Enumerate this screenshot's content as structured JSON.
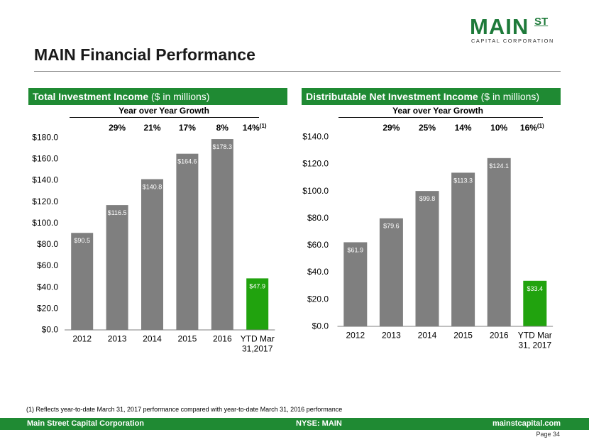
{
  "logo": {
    "main": "MAIN",
    "st": "ST",
    "sub": "CAPITAL CORPORATION"
  },
  "title": "MAIN Financial Performance",
  "left_header": {
    "bold": "Total Investment Income",
    "rest": " ($ in millions)"
  },
  "right_header": {
    "bold": "Distributable Net Investment Income",
    "rest": " ($ in millions)"
  },
  "colors": {
    "gray_bar": "#7f7f7f",
    "green_bar": "#21a30e",
    "brand_green": "#1f8a33"
  },
  "chart_data": [
    {
      "type": "bar",
      "title": "Total Investment Income ($ in millions)",
      "growth_title": "Year over Year Growth",
      "growth": [
        "29%",
        "21%",
        "17%",
        "8%",
        "14%"
      ],
      "growth_last_note": "(1)",
      "categories": [
        "2012",
        "2013",
        "2014",
        "2015",
        "2016",
        "YTD Mar 31,2017"
      ],
      "category_lines": [
        [
          "2012"
        ],
        [
          "2013"
        ],
        [
          "2014"
        ],
        [
          "2015"
        ],
        [
          "2016"
        ],
        [
          "YTD Mar",
          "31,2017"
        ]
      ],
      "values": [
        90.5,
        116.5,
        140.8,
        164.6,
        178.3,
        47.9
      ],
      "value_labels": [
        "$90.5",
        "$116.5",
        "$140.8",
        "$164.6",
        "$178.3",
        "$47.9"
      ],
      "highlight_last": true,
      "ylim": [
        0,
        180
      ],
      "yticks": [
        "$0.0",
        "$20.0",
        "$40.0",
        "$60.0",
        "$80.0",
        "$100.0",
        "$120.0",
        "$140.0",
        "$160.0",
        "$180.0"
      ],
      "grid": false
    },
    {
      "type": "bar",
      "title": "Distributable Net Investment Income ($ in millions)",
      "growth_title": "Year over Year Growth",
      "growth": [
        "29%",
        "25%",
        "14%",
        "10%",
        "16%"
      ],
      "growth_last_note": "(1)",
      "categories": [
        "2012",
        "2013",
        "2014",
        "2015",
        "2016",
        "YTD Mar 31, 2017"
      ],
      "category_lines": [
        [
          "2012"
        ],
        [
          "2013"
        ],
        [
          "2014"
        ],
        [
          "2015"
        ],
        [
          "2016"
        ],
        [
          "YTD Mar",
          "31, 2017"
        ]
      ],
      "values": [
        61.9,
        79.6,
        99.8,
        113.3,
        124.1,
        33.4
      ],
      "value_labels": [
        "$61.9",
        "$79.6",
        "$99.8",
        "$113.3",
        "$124.1",
        "$33.4"
      ],
      "highlight_last": true,
      "ylim": [
        0,
        140
      ],
      "yticks": [
        "$0.0",
        "$20.0",
        "$40.0",
        "$60.0",
        "$80.0",
        "$100.0",
        "$120.0",
        "$140.0"
      ],
      "grid": false
    }
  ],
  "footnote": "(1) Reflects year-to-date March 31, 2017 performance compared with year-to-date March 31, 2016 performance",
  "footer": {
    "left": "Main Street Capital Corporation",
    "middle": "NYSE: MAIN",
    "right": "mainstcapital.com"
  },
  "page": "Page  34"
}
